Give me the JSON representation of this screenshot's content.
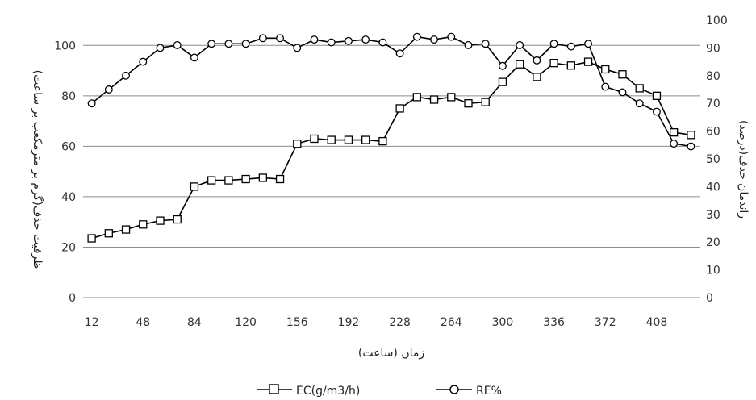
{
  "chart_data": {
    "type": "line",
    "title": "",
    "xlabel": "زمان (ساعت)",
    "ylabel_left": "ظرفیت حذف(گرم بر مترمکعب بر ساعت)",
    "ylabel_right": "راندمان حذف(درصد)",
    "x": [
      12,
      24,
      36,
      48,
      60,
      72,
      84,
      96,
      108,
      120,
      132,
      144,
      156,
      168,
      180,
      192,
      204,
      216,
      228,
      240,
      252,
      264,
      276,
      288,
      300,
      312,
      324,
      336,
      348,
      360,
      372,
      384,
      396,
      408,
      420,
      432
    ],
    "x_ticks": [
      "12",
      "48",
      "84",
      "120",
      "156",
      "192",
      "228",
      "264",
      "300",
      "336",
      "372",
      "408"
    ],
    "y_left_ticks": [
      "0",
      "20",
      "40",
      "60",
      "80",
      "100"
    ],
    "y_right_ticks": [
      "0",
      "10",
      "20",
      "30",
      "40",
      "50",
      "60",
      "70",
      "80",
      "90",
      "100"
    ],
    "ylim_left": [
      0,
      110
    ],
    "ylim_right": [
      0,
      100
    ],
    "grid": "horizontal",
    "legend_position": "bottom",
    "series": [
      {
        "name": "EC(g/m3/h)",
        "axis": "left",
        "marker": "square",
        "values": [
          23.5,
          25.5,
          27,
          29,
          30.5,
          31,
          44,
          46.5,
          46.5,
          47,
          47.5,
          47,
          61,
          63,
          62.5,
          62.5,
          62.5,
          62,
          75,
          79.5,
          78.5,
          79.5,
          77,
          77.5,
          85.5,
          92.5,
          87.5,
          93,
          92,
          93.5,
          90.5,
          88.5,
          83,
          80,
          65.5,
          64.5
        ]
      },
      {
        "name": "RE%",
        "axis": "right",
        "marker": "circle",
        "values": [
          70,
          75,
          80,
          85,
          90,
          91,
          86.5,
          91.5,
          91.5,
          91.5,
          93.5,
          93.5,
          90,
          93,
          92,
          92.5,
          93,
          92,
          88,
          94,
          93,
          94,
          91,
          91.5,
          83.5,
          91,
          85.5,
          91.5,
          90.5,
          91.5,
          76,
          74,
          70,
          67,
          55.5,
          54.5
        ]
      }
    ]
  }
}
